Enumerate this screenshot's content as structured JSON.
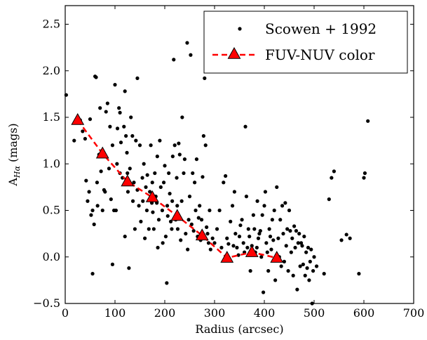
{
  "chart_data": {
    "type": "scatter",
    "xlabel": "Radius (arcsec)",
    "ylabel_main": "A",
    "ylabel_sub": "Hα",
    "ylabel_units": "(mags)",
    "xlim": [
      0,
      700
    ],
    "ylim": [
      -0.5,
      2.7
    ],
    "xticks": [
      0,
      100,
      200,
      300,
      400,
      500,
      600,
      700
    ],
    "yticks": [
      -0.5,
      0.0,
      0.5,
      1.0,
      1.5,
      2.0,
      2.5
    ],
    "xtick_labels": [
      "0",
      "100",
      "200",
      "300",
      "400",
      "500",
      "600",
      "700"
    ],
    "ytick_labels": [
      "−0.5",
      "0.0",
      "0.5",
      "1.0",
      "1.5",
      "2.0",
      "2.5"
    ],
    "grid": false,
    "legend_position": "top-right",
    "series": [
      {
        "name": "Scowen + 1992",
        "kind": "scatter",
        "color": "#000000",
        "points": [
          [
            2,
            1.74
          ],
          [
            18,
            1.25
          ],
          [
            30,
            1.47
          ],
          [
            35,
            1.35
          ],
          [
            40,
            1.27
          ],
          [
            42,
            0.82
          ],
          [
            45,
            0.6
          ],
          [
            48,
            0.7
          ],
          [
            50,
            1.48
          ],
          [
            52,
            0.45
          ],
          [
            55,
            0.5
          ],
          [
            55,
            -0.18
          ],
          [
            58,
            0.35
          ],
          [
            60,
            1.94
          ],
          [
            62,
            1.93
          ],
          [
            64,
            0.8
          ],
          [
            65,
            0.55
          ],
          [
            68,
            1.1
          ],
          [
            70,
            1.6
          ],
          [
            72,
            0.92
          ],
          [
            75,
            0.5
          ],
          [
            78,
            0.72
          ],
          [
            80,
            0.7
          ],
          [
            82,
            1.56
          ],
          [
            85,
            1.65
          ],
          [
            88,
            0.95
          ],
          [
            90,
            1.4
          ],
          [
            92,
            0.62
          ],
          [
            95,
            1.2
          ],
          [
            95,
            -0.08
          ],
          [
            98,
            0.5
          ],
          [
            100,
            1.85
          ],
          [
            102,
            0.5
          ],
          [
            104,
            1.0
          ],
          [
            105,
            1.38
          ],
          [
            108,
            1.6
          ],
          [
            110,
            1.55
          ],
          [
            110,
            0.9
          ],
          [
            112,
            1.23
          ],
          [
            115,
            0.85
          ],
          [
            118,
            1.4
          ],
          [
            120,
            1.78
          ],
          [
            120,
            0.22
          ],
          [
            122,
            1.3
          ],
          [
            124,
            1.12
          ],
          [
            125,
            0.9
          ],
          [
            126,
            0.7
          ],
          [
            128,
            -0.12
          ],
          [
            130,
            0.95
          ],
          [
            132,
            1.5
          ],
          [
            135,
            1.3
          ],
          [
            136,
            0.6
          ],
          [
            138,
            0.8
          ],
          [
            140,
            0.3
          ],
          [
            142,
            1.25
          ],
          [
            145,
            1.92
          ],
          [
            145,
            0.72
          ],
          [
            148,
            0.55
          ],
          [
            150,
            1.2
          ],
          [
            152,
            0.38
          ],
          [
            155,
            0.85
          ],
          [
            156,
            0.6
          ],
          [
            158,
            1.0
          ],
          [
            160,
            0.2
          ],
          [
            162,
            0.75
          ],
          [
            164,
            0.5
          ],
          [
            165,
            0.88
          ],
          [
            168,
            0.3
          ],
          [
            170,
            0.7
          ],
          [
            172,
            1.2
          ],
          [
            174,
            0.58
          ],
          [
            175,
            0.8
          ],
          [
            176,
            0.48
          ],
          [
            178,
            0.3
          ],
          [
            180,
            0.9
          ],
          [
            182,
            0.65
          ],
          [
            184,
            0.58
          ],
          [
            185,
            1.08
          ],
          [
            186,
            0.1
          ],
          [
            188,
            0.4
          ],
          [
            190,
            1.25
          ],
          [
            192,
            0.75
          ],
          [
            195,
            0.5
          ],
          [
            196,
            0.15
          ],
          [
            198,
            0.8
          ],
          [
            200,
            0.98
          ],
          [
            202,
            0.22
          ],
          [
            204,
            -0.28
          ],
          [
            205,
            0.55
          ],
          [
            206,
            0.44
          ],
          [
            208,
            0.9
          ],
          [
            210,
            0.68
          ],
          [
            212,
            0.38
          ],
          [
            214,
            0.3
          ],
          [
            215,
            0.6
          ],
          [
            216,
            1.08
          ],
          [
            218,
            2.12
          ],
          [
            220,
            1.2
          ],
          [
            222,
            0.4
          ],
          [
            224,
            0.85
          ],
          [
            225,
            0.55
          ],
          [
            226,
            0.3
          ],
          [
            228,
            1.22
          ],
          [
            230,
            1.1
          ],
          [
            232,
            0.18
          ],
          [
            234,
            0.6
          ],
          [
            235,
            1.5
          ],
          [
            238,
            0.9
          ],
          [
            240,
            1.05
          ],
          [
            242,
            0.25
          ],
          [
            245,
            2.3
          ],
          [
            246,
            0.08
          ],
          [
            248,
            0.4
          ],
          [
            250,
            0.65
          ],
          [
            252,
            2.17
          ],
          [
            254,
            0.35
          ],
          [
            256,
            0.9
          ],
          [
            258,
            0.28
          ],
          [
            260,
            0.8
          ],
          [
            262,
            0.5
          ],
          [
            264,
            1.05
          ],
          [
            266,
            0.22
          ],
          [
            268,
            0.42
          ],
          [
            270,
            0.55
          ],
          [
            272,
            0.18
          ],
          [
            274,
            0.4
          ],
          [
            276,
            0.86
          ],
          [
            278,
            1.3
          ],
          [
            280,
            1.92
          ],
          [
            282,
            1.2
          ],
          [
            284,
            0.32
          ],
          [
            286,
            0.25
          ],
          [
            288,
            0.15
          ],
          [
            290,
            0.5
          ],
          [
            292,
            0.08
          ],
          [
            296,
            0.2
          ],
          [
            300,
            0.15
          ],
          [
            305,
            0.3
          ],
          [
            310,
            0.5
          ],
          [
            314,
            0.1
          ],
          [
            318,
            0.8
          ],
          [
            322,
            0.87
          ],
          [
            325,
            0.2
          ],
          [
            328,
            0.14
          ],
          [
            332,
            0.38
          ],
          [
            336,
            0.55
          ],
          [
            338,
            0.12
          ],
          [
            340,
            0.7
          ],
          [
            342,
            0.25
          ],
          [
            345,
            0.1
          ],
          [
            348,
            0.02
          ],
          [
            350,
            0.22
          ],
          [
            352,
            0.34
          ],
          [
            355,
            0.4
          ],
          [
            358,
            0.15
          ],
          [
            360,
            0.05
          ],
          [
            362,
            1.4
          ],
          [
            364,
            0.65
          ],
          [
            366,
            0.1
          ],
          [
            368,
            0.3
          ],
          [
            370,
            0.22
          ],
          [
            372,
            -0.15
          ],
          [
            375,
            0.12
          ],
          [
            378,
            0.45
          ],
          [
            380,
            0.3
          ],
          [
            382,
            0.05
          ],
          [
            385,
            0.1
          ],
          [
            386,
            0.6
          ],
          [
            388,
            0.2
          ],
          [
            390,
            0.25
          ],
          [
            392,
            0.28
          ],
          [
            394,
            0.0
          ],
          [
            396,
            0.45
          ],
          [
            398,
            -0.38
          ],
          [
            400,
            0.55
          ],
          [
            402,
            0.7
          ],
          [
            404,
            0.15
          ],
          [
            406,
            0.05
          ],
          [
            408,
            -0.15
          ],
          [
            410,
            0.3
          ],
          [
            412,
            0.22
          ],
          [
            414,
            0.08
          ],
          [
            416,
            0.4
          ],
          [
            418,
            0.18
          ],
          [
            420,
            0.5
          ],
          [
            422,
            -0.25
          ],
          [
            425,
            0.75
          ],
          [
            428,
            0.2
          ],
          [
            430,
            0.0
          ],
          [
            432,
            0.4
          ],
          [
            434,
            -0.1
          ],
          [
            436,
            0.55
          ],
          [
            438,
            0.25
          ],
          [
            440,
            -0.05
          ],
          [
            442,
            0.58
          ],
          [
            444,
            0.12
          ],
          [
            446,
            0.3
          ],
          [
            448,
            -0.15
          ],
          [
            450,
            0.5
          ],
          [
            452,
            0.28
          ],
          [
            454,
            0.05
          ],
          [
            456,
            0.2
          ],
          [
            458,
            -0.2
          ],
          [
            460,
            0.33
          ],
          [
            462,
            0.1
          ],
          [
            464,
            0.28
          ],
          [
            466,
            -0.35
          ],
          [
            468,
            0.15
          ],
          [
            470,
            0.25
          ],
          [
            472,
            -0.1
          ],
          [
            474,
            0.15
          ],
          [
            476,
            0.12
          ],
          [
            478,
            -0.08
          ],
          [
            480,
            0.22
          ],
          [
            482,
            -0.2
          ],
          [
            484,
            0.05
          ],
          [
            486,
            -0.12
          ],
          [
            488,
            0.1
          ],
          [
            490,
            -0.25
          ],
          [
            492,
            -0.05
          ],
          [
            494,
            0.08
          ],
          [
            496,
            -0.5
          ],
          [
            498,
            -0.15
          ],
          [
            500,
            0.0
          ],
          [
            505,
            -0.1
          ],
          [
            520,
            -0.18
          ],
          [
            530,
            0.62
          ],
          [
            535,
            0.85
          ],
          [
            540,
            0.92
          ],
          [
            555,
            0.18
          ],
          [
            565,
            0.24
          ],
          [
            572,
            0.2
          ],
          [
            590,
            -0.18
          ],
          [
            600,
            0.85
          ],
          [
            602,
            0.9
          ],
          [
            608,
            1.46
          ]
        ]
      },
      {
        "name": "FUV-NUV color",
        "kind": "line",
        "color": "#ff0000",
        "x": [
          25,
          75,
          125,
          175,
          225,
          275,
          325,
          375,
          425
        ],
        "y": [
          1.47,
          1.11,
          0.81,
          0.64,
          0.44,
          0.23,
          -0.01,
          0.05,
          -0.01
        ]
      }
    ]
  }
}
